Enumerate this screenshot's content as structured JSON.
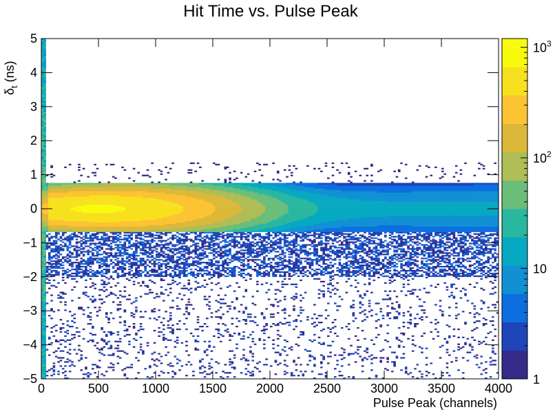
{
  "chart_data": {
    "type": "heatmap",
    "title": "Hit Time vs. Pulse Peak",
    "xlabel": "Pulse Peak (channels)",
    "ylabel_main": "δ",
    "ylabel_sub": "t",
    "ylabel_unit": " (ns)",
    "xlim": [
      0,
      4000
    ],
    "ylim": [
      -5,
      5
    ],
    "x_ticks": [
      0,
      500,
      1000,
      1500,
      2000,
      2500,
      3000,
      3500,
      4000
    ],
    "x_tick_labels": [
      "0",
      "500",
      "1000",
      "1500",
      "2000",
      "2500",
      "3000",
      "3500",
      "4000"
    ],
    "y_ticks": [
      -5,
      -4,
      -3,
      -2,
      -1,
      0,
      1,
      2,
      3,
      4,
      5
    ],
    "y_tick_labels": [
      "−5",
      "−4",
      "−3",
      "−2",
      "−1",
      "0",
      "1",
      "2",
      "3",
      "4",
      "5"
    ],
    "z_scale": "log",
    "zlim": [
      1,
      1200
    ],
    "colorbar_ticks": [
      {
        "value": 1,
        "base": "1",
        "exp": ""
      },
      {
        "value": 10,
        "base": "10",
        "exp": ""
      },
      {
        "value": 100,
        "base": "10",
        "exp": "2"
      },
      {
        "value": 1000,
        "base": "10",
        "exp": "3"
      }
    ],
    "band": {
      "description": "dense band of counts centered near δt = 0",
      "peak_x": 500,
      "peak_y": 0,
      "peak_counts": 700,
      "band_upper_y": 0.75,
      "band_lower_y": -0.6,
      "tail_lower_y": -2.0,
      "low_x_spike_x": [
        0,
        40
      ]
    },
    "colormap": [
      "#352a87",
      "#1f45b8",
      "#0d6ee0",
      "#1191d4",
      "#07a9c2",
      "#2ab7a0",
      "#6abe7a",
      "#aebd56",
      "#dcb83a",
      "#fcc332",
      "#f7e11f",
      "#f9fb0e"
    ]
  }
}
